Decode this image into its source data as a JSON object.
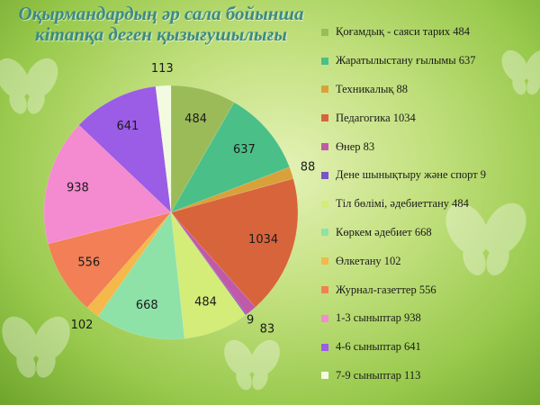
{
  "title": "Оқырмандардың әр сала бойынша кітапқа деген қызығушылығы",
  "chart_data": {
    "type": "pie",
    "title": "Оқырмандардың әр сала бойынша кітапқа деген қызығушылығы",
    "legend_position": "right",
    "slices": [
      {
        "label": "Қоғамдық - саяси тарих 484",
        "value": 484,
        "color": "#9bbb59"
      },
      {
        "label": "Жаратылыстану ғылымы 637",
        "value": 637,
        "color": "#4bbf88"
      },
      {
        "label": "Техникалық 88",
        "value": 88,
        "color": "#d9a13a"
      },
      {
        "label": "Педагогика 1034",
        "value": 1034,
        "color": "#d8643c"
      },
      {
        "label": "Өнер 83",
        "value": 83,
        "color": "#c05aa8"
      },
      {
        "label": "Дене шынықтыру және спорт 9",
        "value": 9,
        "color": "#7b52c8"
      },
      {
        "label": "Тіл бөлімі, әдебиеттану 484",
        "value": 484,
        "color": "#d4ec78"
      },
      {
        "label": "Көркем әдебиет 668",
        "value": 668,
        "color": "#8ee2a8"
      },
      {
        "label": "Өлкетану 102",
        "value": 102,
        "color": "#f5b84a"
      },
      {
        "label": "Журнал-газеттер 556",
        "value": 556,
        "color": "#f27f55"
      },
      {
        "label": "1-3 сыныптар 938",
        "value": 938,
        "color": "#f48ad0"
      },
      {
        "label": "4-6 сыныптар 641",
        "value": 641,
        "color": "#9b5ce6"
      },
      {
        "label": "7-9 сыныптар 113",
        "value": 113,
        "color": "#f2fae0"
      }
    ]
  }
}
